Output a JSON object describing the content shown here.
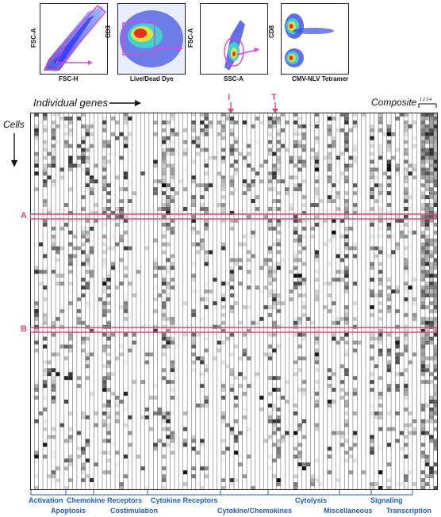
{
  "flow_panels": [
    {
      "xlabel": "FSC-H",
      "ylabel": "FSC-A"
    },
    {
      "xlabel": "Live/Dead Dye",
      "ylabel": "CD3"
    },
    {
      "xlabel": "SSC-A",
      "ylabel": "FSC-A"
    },
    {
      "xlabel": "CMV-NLV Tetramer",
      "ylabel": "CD8"
    }
  ],
  "heatmap": {
    "title_left": "Individual genes",
    "title_right": "Composite",
    "composite_ticks": "1 2 3 4",
    "y_label": "Cells",
    "markers": [
      "I",
      "T"
    ],
    "row_highlights": [
      "A",
      "B"
    ],
    "categories_top": [
      "Activation",
      "Chemokine Receptors",
      "Cytokine Receptors",
      "Cytolysis",
      "Signaling"
    ],
    "categories_bottom": [
      "Apoptosis",
      "Costimulation",
      "Cytokine/Chemokines",
      "Miscellaneous",
      "Transcription"
    ]
  },
  "colors": {
    "highlight": "#e0457b",
    "category": "#1f5fc0",
    "cell_dark": "#000000"
  }
}
